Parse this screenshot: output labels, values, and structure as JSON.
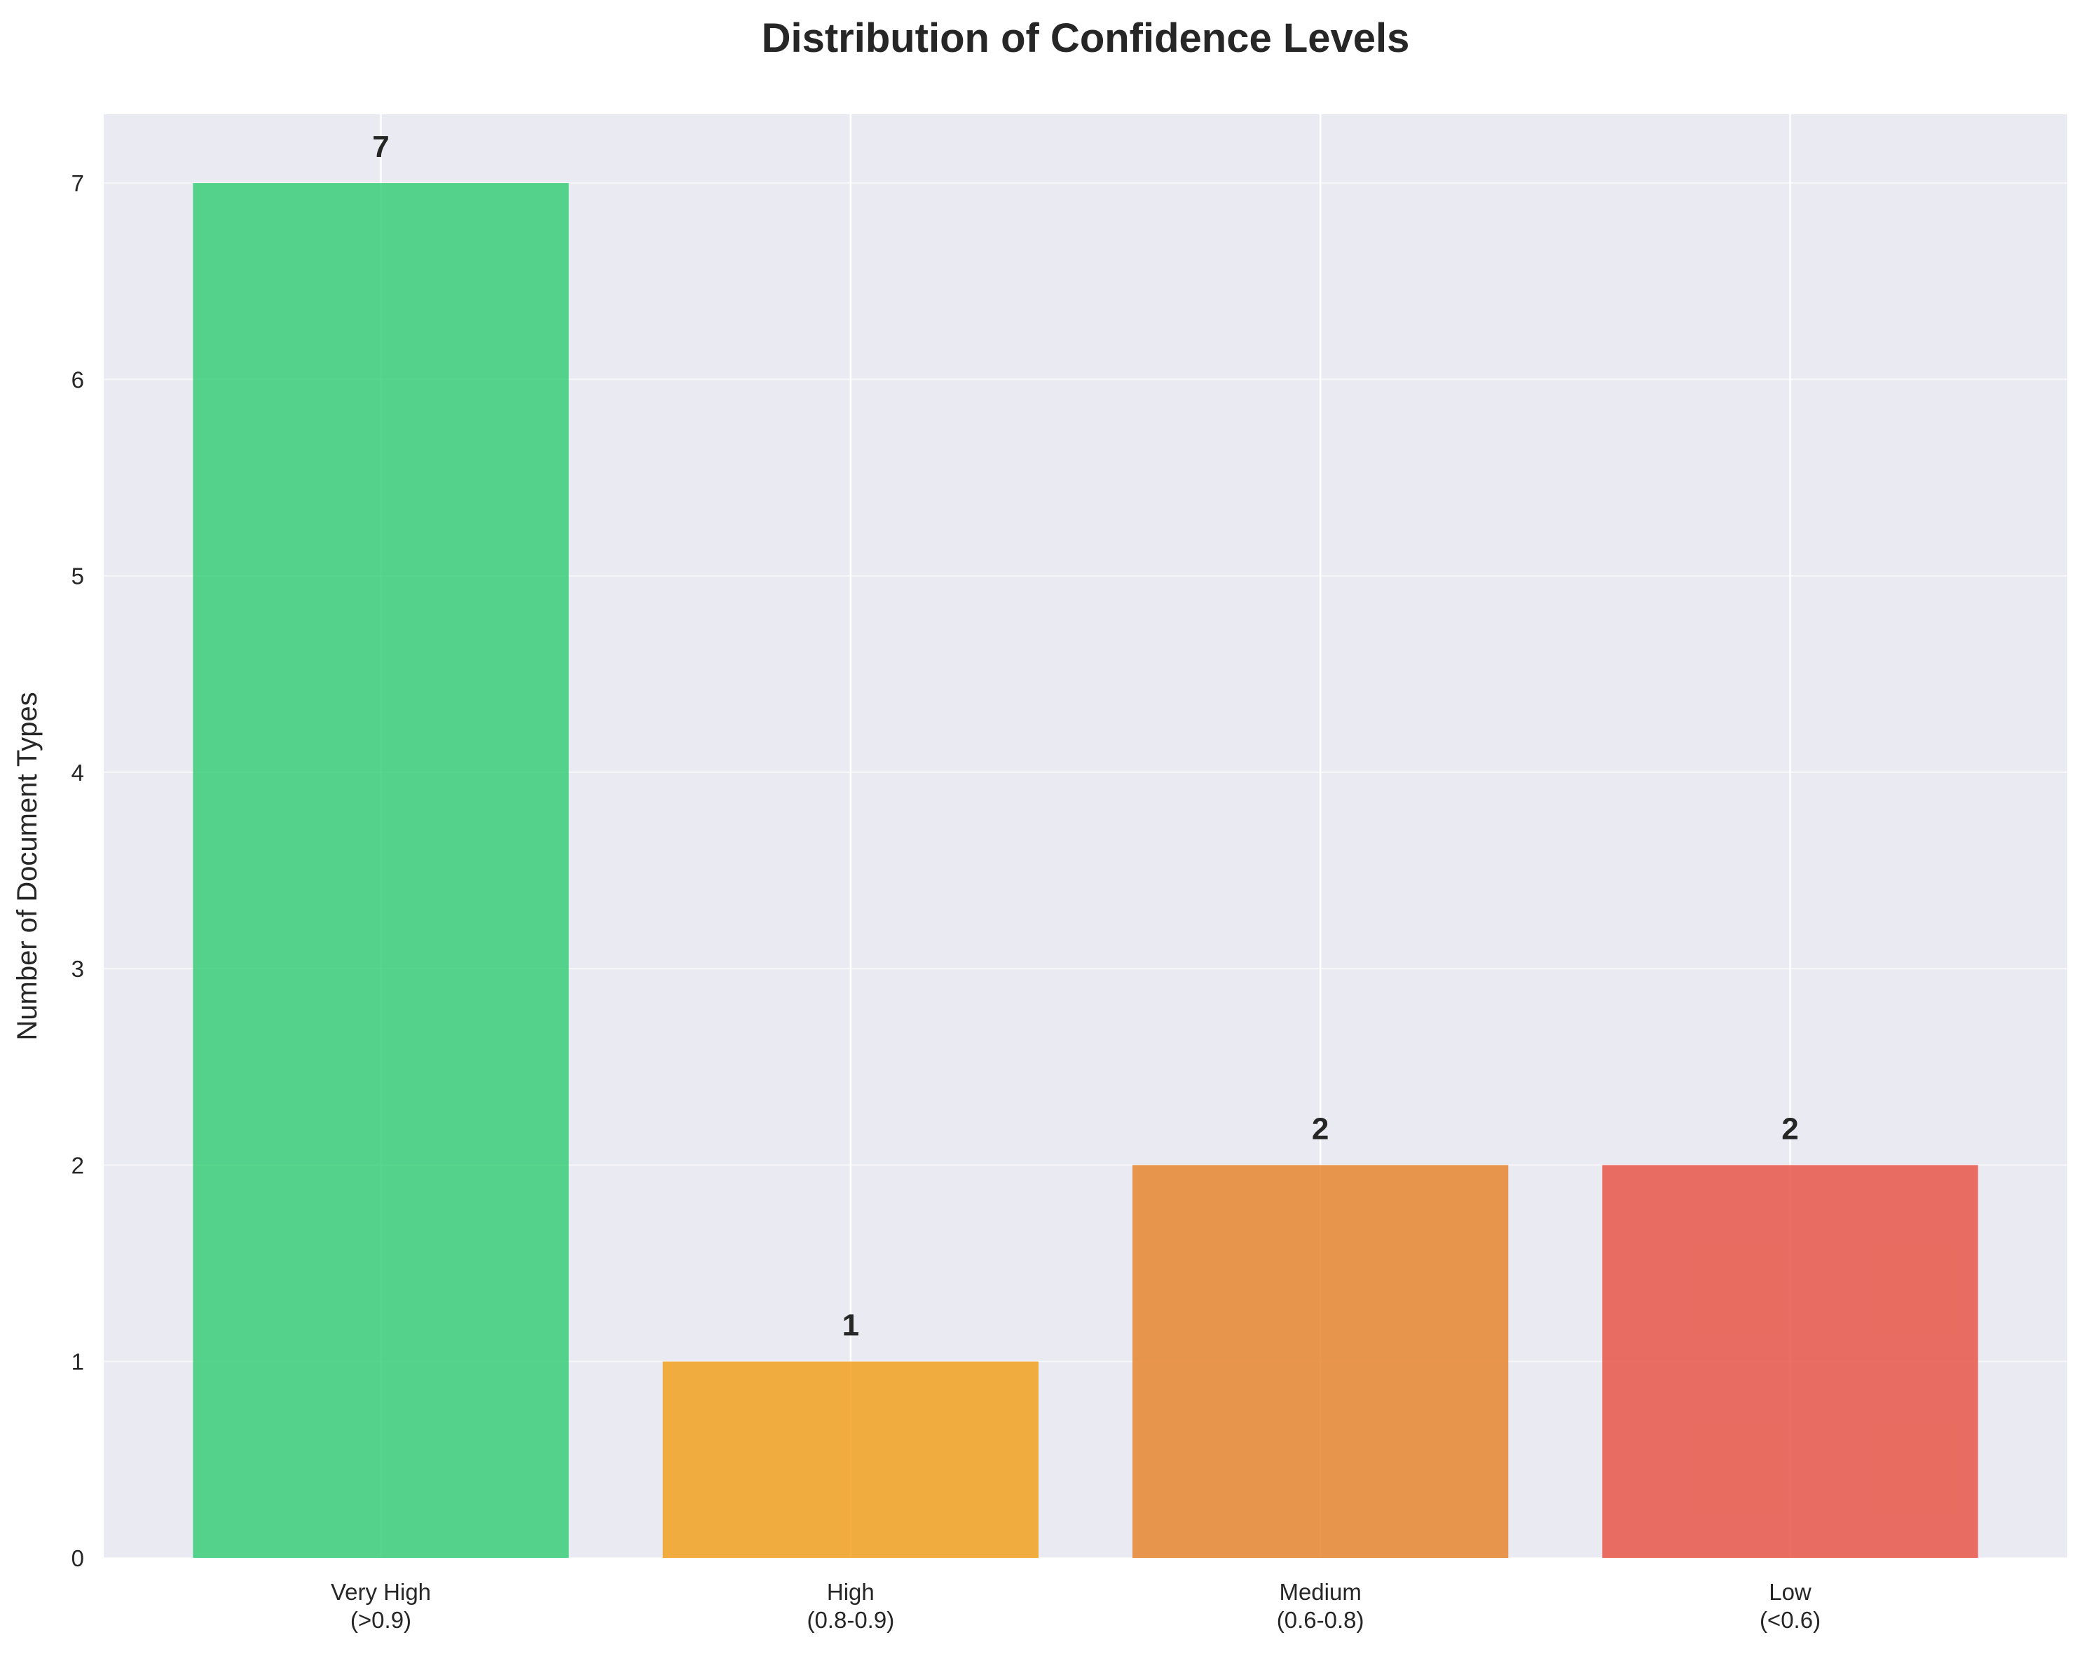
{
  "chart_data": {
    "type": "bar",
    "title": "Distribution of Confidence Levels",
    "xlabel": "",
    "ylabel": "Number of Document Types",
    "categories": [
      [
        "Very High",
        "(>0.9)"
      ],
      [
        "High",
        "(0.8-0.9)"
      ],
      [
        "Medium",
        "(0.6-0.8)"
      ],
      [
        "Low",
        "(<0.6)"
      ]
    ],
    "values": [
      7,
      1,
      2,
      2
    ],
    "data_labels": [
      "7",
      "1",
      "2",
      "2"
    ],
    "colors": [
      "#2ecc71",
      "#f39c12",
      "#e67e22",
      "#e74c3c"
    ],
    "ylim": [
      0,
      7.35
    ],
    "yticks": [
      0,
      1,
      2,
      3,
      4,
      5,
      6,
      7
    ],
    "grid": true,
    "legend": "none",
    "background_color": "#eaeaf2"
  }
}
